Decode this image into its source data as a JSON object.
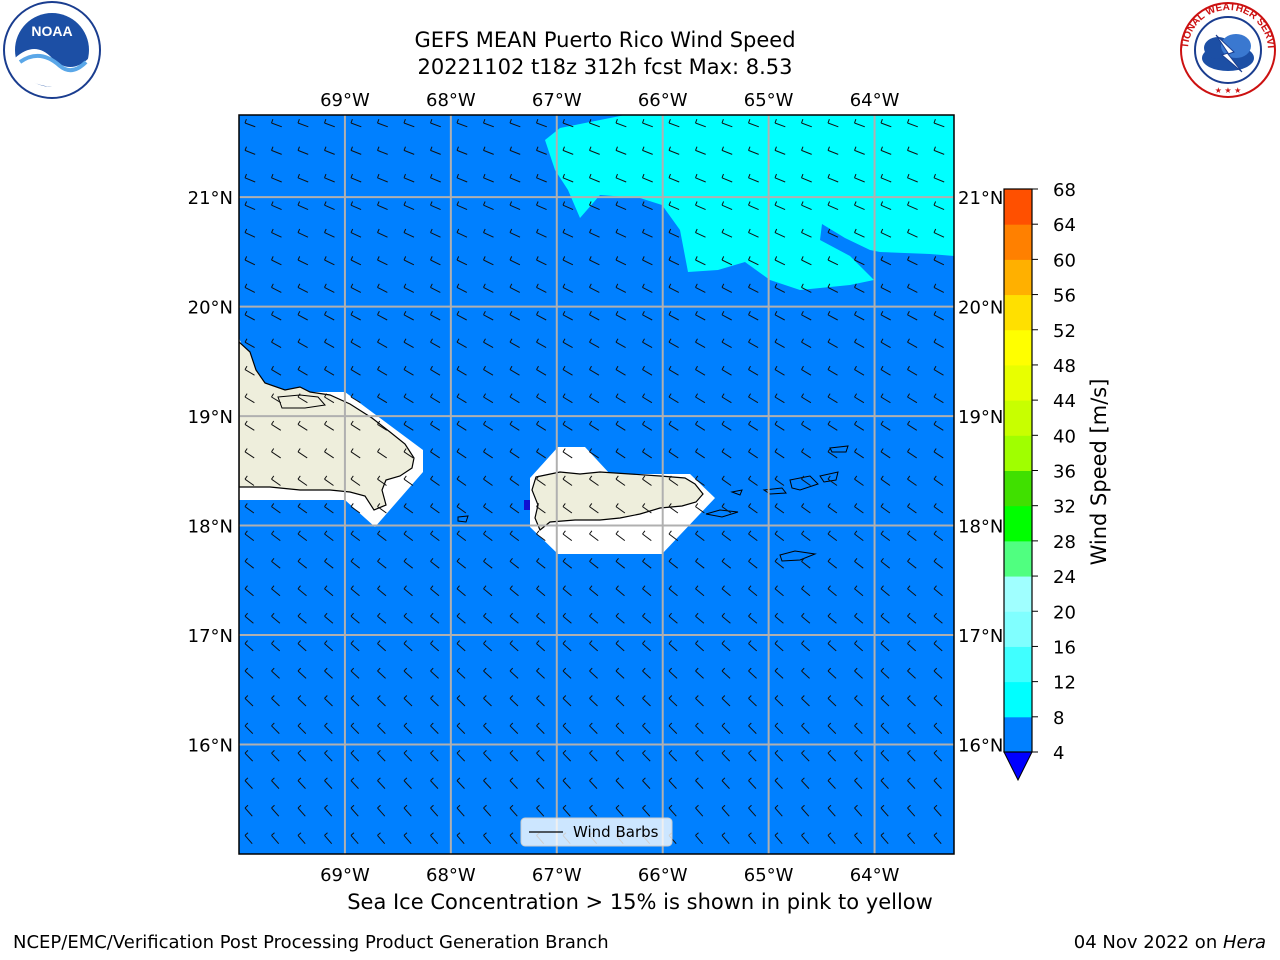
{
  "title": {
    "line1": "GEFS MEAN Puerto Rico Wind Speed",
    "line2": "20221102 t18z 312h fcst   Max: 8.53"
  },
  "map": {
    "lon_range": [
      -70,
      -63.25
    ],
    "lat_range": [
      15,
      21.75
    ],
    "lon_ticks": [
      "69°W",
      "68°W",
      "67°W",
      "66°W",
      "65°W",
      "64°W"
    ],
    "lat_ticks": [
      "21°N",
      "20°N",
      "19°N",
      "18°N",
      "17°N",
      "16°N"
    ],
    "ocean_color": "#0080ff",
    "high_wind_color": "#00ffff",
    "land_color": "#eeeedc",
    "grid_color": "#b0b0b0"
  },
  "legend": {
    "label": "Wind Barbs"
  },
  "colorbar": {
    "label": "Wind Speed [m/s]",
    "ticks": [
      "4",
      "8",
      "12",
      "16",
      "20",
      "24",
      "28",
      "32",
      "36",
      "40",
      "44",
      "48",
      "52",
      "56",
      "60",
      "64",
      "68"
    ],
    "colors": [
      "#0080ff",
      "#00ffff",
      "#40ffff",
      "#80ffff",
      "#a0ffff",
      "#50ff80",
      "#00ff00",
      "#40e000",
      "#a0ff00",
      "#c8ff00",
      "#e8ff00",
      "#ffff00",
      "#ffe000",
      "#ffb000",
      "#ff8000",
      "#ff5000",
      "#ff2000",
      "#ff0000"
    ],
    "under_color": "#0000ff"
  },
  "caption": "Sea Ice Concentration > 15% is shown in pink to yellow",
  "footer": {
    "left": "NCEP/EMC/Verification Post Processing Product Generation Branch",
    "date": "04 Nov 2022 on ",
    "machine": "Hera"
  },
  "logos": {
    "left": "NOAA",
    "right": "NATIONAL WEATHER SERVICE"
  }
}
